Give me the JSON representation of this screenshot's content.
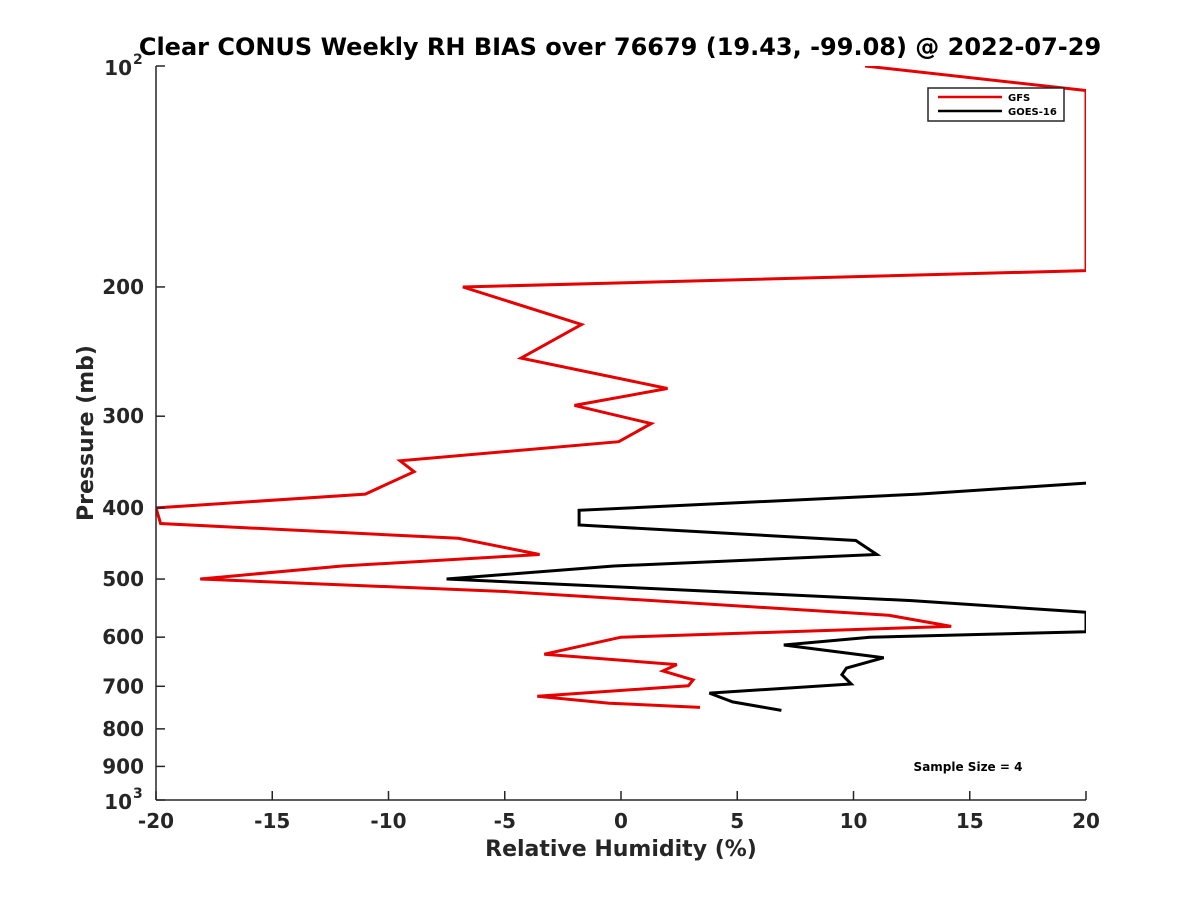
{
  "chart_data": {
    "type": "line",
    "title": "Clear CONUS Weekly RH BIAS over 76679 (19.43, -99.08) @ 2022-07-29",
    "xlabel": "Relative Humidity (%)",
    "ylabel": "Pressure (mb)",
    "xlim": [
      -20,
      20
    ],
    "ylim": [
      100,
      1000
    ],
    "y_scale": "log",
    "y_reversed": true,
    "x_ticks": [
      -20,
      -15,
      -10,
      -5,
      0,
      5,
      10,
      15,
      20
    ],
    "y_ticks": [
      {
        "value": 100,
        "base": "10",
        "exp": "2"
      },
      {
        "value": 200,
        "label": "200"
      },
      {
        "value": 300,
        "label": "300"
      },
      {
        "value": 400,
        "label": "400"
      },
      {
        "value": 500,
        "label": "500"
      },
      {
        "value": 600,
        "label": "600"
      },
      {
        "value": 700,
        "label": "700"
      },
      {
        "value": 800,
        "label": "800"
      },
      {
        "value": 900,
        "label": "900"
      },
      {
        "value": 1000,
        "base": "10",
        "exp": "3"
      }
    ],
    "legend_position": "top-right",
    "annotation": "Sample Size = 4",
    "series": [
      {
        "name": "GFS",
        "color": "#e60000",
        "points": [
          [
            10.5,
            100
          ],
          [
            20,
            108
          ],
          [
            20,
            190
          ],
          [
            -6.8,
            200
          ],
          [
            -1.7,
            225
          ],
          [
            -4.3,
            250
          ],
          [
            2.0,
            275
          ],
          [
            -2.0,
            290
          ],
          [
            1.3,
            307
          ],
          [
            -0.1,
            325
          ],
          [
            -9.5,
            345
          ],
          [
            -8.9,
            357
          ],
          [
            -11,
            383
          ],
          [
            -20,
            400
          ],
          [
            -19.8,
            420
          ],
          [
            -7.0,
            440
          ],
          [
            -3.5,
            463
          ],
          [
            -12,
            480
          ],
          [
            -18.1,
            500
          ],
          [
            -5,
            520
          ],
          [
            11.5,
            560
          ],
          [
            14.2,
            580
          ],
          [
            0,
            600
          ],
          [
            -3.3,
            633
          ],
          [
            2.4,
            654
          ],
          [
            1.8,
            667
          ],
          [
            3.1,
            686
          ],
          [
            2.9,
            699
          ],
          [
            -3.6,
            722
          ],
          [
            -0.5,
            738
          ],
          [
            3.4,
            748
          ]
        ]
      },
      {
        "name": "GOES-16",
        "color": "#000000",
        "points": [
          [
            20,
            370
          ],
          [
            12.8,
            383
          ],
          [
            -1.8,
            403
          ],
          [
            -1.8,
            422
          ],
          [
            10.1,
            443
          ],
          [
            11.0,
            463
          ],
          [
            -0.3,
            480
          ],
          [
            -7.5,
            500
          ],
          [
            12.5,
            535
          ],
          [
            20,
            555
          ],
          [
            20,
            590
          ],
          [
            10.7,
            600
          ],
          [
            7.0,
            615
          ],
          [
            11.3,
            640
          ],
          [
            9.7,
            661
          ],
          [
            9.5,
            675
          ],
          [
            9.9,
            695
          ],
          [
            3.8,
            715
          ],
          [
            4.8,
            735
          ],
          [
            6.9,
            755
          ]
        ]
      }
    ]
  }
}
